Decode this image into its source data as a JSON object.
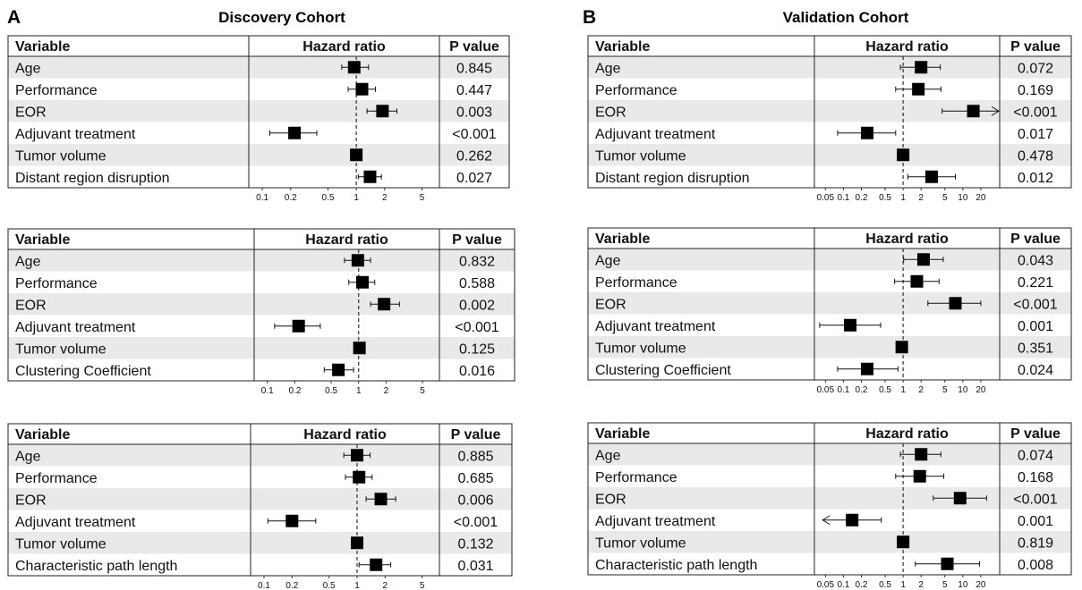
{
  "panels": [
    {
      "letter": "A",
      "title": "Discovery Cohort"
    },
    {
      "letter": "B",
      "title": "Validation Cohort"
    }
  ],
  "chart_data": [
    {
      "type": "forest",
      "panel": "A",
      "headers": [
        "Variable",
        "Hazard ratio",
        "P value"
      ],
      "xscale": "log",
      "xticks": [
        0.1,
        0.2,
        0.5,
        1,
        2,
        5
      ],
      "xtick_labels": [
        "0.1",
        "0.2",
        "0.5",
        "1",
        "2",
        "5"
      ],
      "reference_line": 1,
      "rows": [
        {
          "variable": "Age",
          "hr": 0.95,
          "lo": 0.7,
          "hi": 1.35,
          "p": "0.845"
        },
        {
          "variable": "Performance",
          "hr": 1.15,
          "lo": 0.82,
          "hi": 1.6,
          "p": "0.447"
        },
        {
          "variable": "EOR",
          "hr": 1.9,
          "lo": 1.3,
          "hi": 2.7,
          "p": "0.003"
        },
        {
          "variable": "Adjuvant treatment",
          "hr": 0.22,
          "lo": 0.12,
          "hi": 0.38,
          "p": "<0.001"
        },
        {
          "variable": "Tumor volume",
          "hr": 1.0,
          "lo": 0.96,
          "hi": 1.04,
          "p": "0.262"
        },
        {
          "variable": "Distant region disruption",
          "hr": 1.4,
          "lo": 1.05,
          "hi": 1.85,
          "p": "0.027"
        }
      ]
    },
    {
      "type": "forest",
      "panel": "A",
      "headers": [
        "Variable",
        "Hazard ratio",
        "P value"
      ],
      "xscale": "log",
      "xticks": [
        0.1,
        0.2,
        0.5,
        1,
        2,
        5
      ],
      "xtick_labels": [
        "0.1",
        "0.2",
        "0.5",
        "1",
        "2",
        "5"
      ],
      "reference_line": 1,
      "rows": [
        {
          "variable": "Age",
          "hr": 0.98,
          "lo": 0.7,
          "hi": 1.35,
          "p": "0.832"
        },
        {
          "variable": "Performance",
          "hr": 1.1,
          "lo": 0.78,
          "hi": 1.5,
          "p": "0.588"
        },
        {
          "variable": "EOR",
          "hr": 1.9,
          "lo": 1.35,
          "hi": 2.8,
          "p": "0.002"
        },
        {
          "variable": "Adjuvant treatment",
          "hr": 0.22,
          "lo": 0.12,
          "hi": 0.38,
          "p": "<0.001"
        },
        {
          "variable": "Tumor volume",
          "hr": 1.02,
          "lo": 0.98,
          "hi": 1.06,
          "p": "0.125"
        },
        {
          "variable": "Clustering Coefficient",
          "hr": 0.6,
          "lo": 0.42,
          "hi": 0.88,
          "p": "0.016"
        }
      ]
    },
    {
      "type": "forest",
      "panel": "A",
      "headers": [
        "Variable",
        "Hazard ratio",
        "P value"
      ],
      "xscale": "log",
      "xticks": [
        0.1,
        0.2,
        0.5,
        1,
        2,
        5
      ],
      "xtick_labels": [
        "0.1",
        "0.2",
        "0.5",
        "1",
        "2",
        "5"
      ],
      "reference_line": 1,
      "rows": [
        {
          "variable": "Age",
          "hr": 1.0,
          "lo": 0.72,
          "hi": 1.38,
          "p": "0.885"
        },
        {
          "variable": "Performance",
          "hr": 1.05,
          "lo": 0.75,
          "hi": 1.45,
          "p": "0.685"
        },
        {
          "variable": "EOR",
          "hr": 1.8,
          "lo": 1.25,
          "hi": 2.6,
          "p": "0.006"
        },
        {
          "variable": "Adjuvant treatment",
          "hr": 0.2,
          "lo": 0.11,
          "hi": 0.36,
          "p": "<0.001"
        },
        {
          "variable": "Tumor volume",
          "hr": 1.0,
          "lo": 0.96,
          "hi": 1.04,
          "p": "0.132"
        },
        {
          "variable": "Characteristic path length",
          "hr": 1.6,
          "lo": 1.05,
          "hi": 2.3,
          "p": "0.031"
        }
      ]
    },
    {
      "type": "forest",
      "panel": "B",
      "headers": [
        "Variable",
        "Hazard ratio",
        "P value"
      ],
      "xscale": "log",
      "xticks": [
        0.05,
        0.1,
        0.2,
        0.5,
        1,
        2,
        5,
        10,
        20
      ],
      "xtick_labels": [
        "0.05",
        "0.1",
        "0.2",
        "0.5",
        "1",
        "2",
        "5",
        "10",
        "20"
      ],
      "reference_line": 1,
      "rows": [
        {
          "variable": "Age",
          "hr": 2.0,
          "lo": 0.9,
          "hi": 4.2,
          "p": "0.072"
        },
        {
          "variable": "Performance",
          "hr": 1.8,
          "lo": 0.75,
          "hi": 4.3,
          "p": "0.169"
        },
        {
          "variable": "EOR",
          "hr": 15,
          "lo": 4.5,
          "hi": 40,
          "p": "<0.001",
          "arrow_right": true
        },
        {
          "variable": "Adjuvant treatment",
          "hr": 0.25,
          "lo": 0.08,
          "hi": 0.75,
          "p": "0.017"
        },
        {
          "variable": "Tumor volume",
          "hr": 1.0,
          "lo": 0.92,
          "hi": 1.08,
          "p": "0.478"
        },
        {
          "variable": "Distant region disruption",
          "hr": 3.0,
          "lo": 1.2,
          "hi": 7.5,
          "p": "0.012"
        }
      ]
    },
    {
      "type": "forest",
      "panel": "B",
      "headers": [
        "Variable",
        "Hazard ratio",
        "P value"
      ],
      "xscale": "log",
      "xticks": [
        0.05,
        0.1,
        0.2,
        0.5,
        1,
        2,
        5,
        10,
        20
      ],
      "xtick_labels": [
        "0.05",
        "0.1",
        "0.2",
        "0.5",
        "1",
        "2",
        "5",
        "10",
        "20"
      ],
      "reference_line": 1,
      "rows": [
        {
          "variable": "Age",
          "hr": 2.2,
          "lo": 1.02,
          "hi": 4.7,
          "p": "0.043"
        },
        {
          "variable": "Performance",
          "hr": 1.7,
          "lo": 0.72,
          "hi": 4.0,
          "p": "0.221"
        },
        {
          "variable": "EOR",
          "hr": 7.5,
          "lo": 2.6,
          "hi": 20,
          "p": "<0.001"
        },
        {
          "variable": "Adjuvant treatment",
          "hr": 0.13,
          "lo": 0.04,
          "hi": 0.42,
          "p": "0.001"
        },
        {
          "variable": "Tumor volume",
          "hr": 0.95,
          "lo": 0.9,
          "hi": 1.02,
          "p": "0.351"
        },
        {
          "variable": "Clustering Coefficient",
          "hr": 0.25,
          "lo": 0.08,
          "hi": 0.82,
          "p": "0.024"
        }
      ]
    },
    {
      "type": "forest",
      "panel": "B",
      "headers": [
        "Variable",
        "Hazard ratio",
        "P value"
      ],
      "xscale": "log",
      "xticks": [
        0.05,
        0.1,
        0.2,
        0.5,
        1,
        2,
        5,
        10,
        20
      ],
      "xtick_labels": [
        "0.05",
        "0.1",
        "0.2",
        "0.5",
        "1",
        "2",
        "5",
        "10",
        "20"
      ],
      "reference_line": 1,
      "rows": [
        {
          "variable": "Age",
          "hr": 2.0,
          "lo": 0.9,
          "hi": 4.3,
          "p": "0.074"
        },
        {
          "variable": "Performance",
          "hr": 1.9,
          "lo": 0.75,
          "hi": 4.8,
          "p": "0.168"
        },
        {
          "variable": "EOR",
          "hr": 9,
          "lo": 3.2,
          "hi": 25,
          "p": "<0.001"
        },
        {
          "variable": "Adjuvant treatment",
          "hr": 0.14,
          "lo": 0.045,
          "hi": 0.43,
          "p": "0.001",
          "arrow_left": true
        },
        {
          "variable": "Tumor volume",
          "hr": 1.0,
          "lo": 0.95,
          "hi": 1.05,
          "p": "0.819"
        },
        {
          "variable": "Characteristic path length",
          "hr": 5.5,
          "lo": 1.6,
          "hi": 19,
          "p": "0.008"
        }
      ]
    }
  ]
}
